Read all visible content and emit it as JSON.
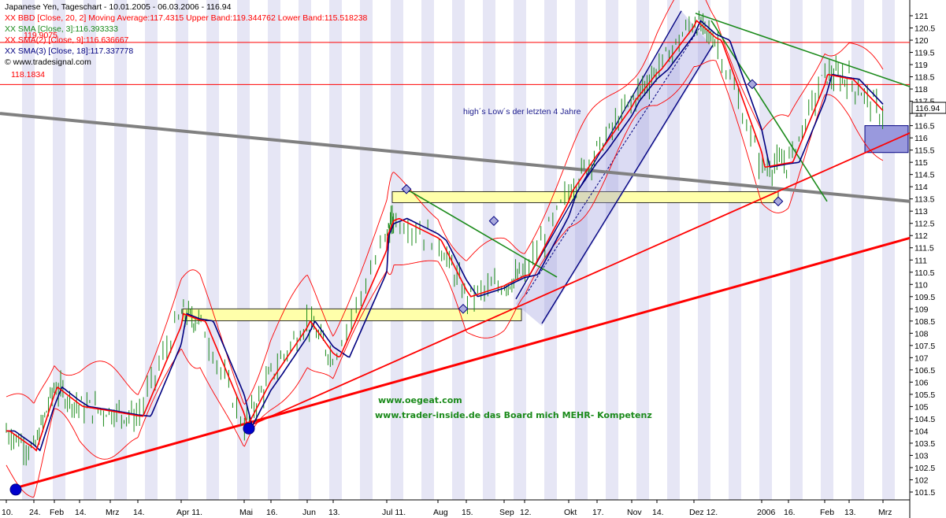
{
  "header": {
    "line1": "Japanese Yen, Tageschart - 10.01.2005 - 06.03.2006 - 116.94",
    "line2": "XX BBD [Close, 20, 2] Moving Average:117.4315 Upper Band:119.344762 Lower Band:115.518238",
    "line3": "XX SMA [Close, 3]:116.393333",
    "line4": "XX SMA(2) [Close, 9]:116.636667",
    "line5": "XX SMA(3) [Close, 18]:117.337778",
    "line6": "© www.tradesignal.com",
    "overlap_label": "119.9075",
    "line_label": "118.1834"
  },
  "annotations": {
    "note": "high´s Low´s der letzten 4 Jahre",
    "url1": "www.oegeat.com",
    "url2": "www.trader-inside.de das Board mich MEHR- Kompetenz"
  },
  "price_box": "116.94",
  "colors": {
    "bar": "#1a8a1a",
    "sma3": "#ff0000",
    "sma18": "#000080",
    "band": "#ff0000",
    "channel": "#000080",
    "trend_green": "#1a8a1a",
    "trend_red": "#ff0000",
    "trend_gray": "#808080",
    "zone_fill": "#ffffaa",
    "stripe": "#e6e6f5"
  },
  "chart_data": {
    "type": "line",
    "title": "Japanese Yen, Tageschart - 10.01.2005 - 06.03.2006 - 116.94",
    "y_axis": {
      "min": 101.5,
      "max": 121,
      "step": 0.5
    },
    "y_tick_labels": [
      "121",
      "120.5",
      "120",
      "119.5",
      "119",
      "118.5",
      "118",
      "117.5",
      "117",
      "116.5",
      "116",
      "115.5",
      "115",
      "114.5",
      "114",
      "113.5",
      "113",
      "112.5",
      "112",
      "111.5",
      "111",
      "110.5",
      "110",
      "109.5",
      "109",
      "108.5",
      "108",
      "107.5",
      "107",
      "106.5",
      "106",
      "105.5",
      "105",
      "104.5",
      "104",
      "103.5",
      "103",
      "102.5",
      "102",
      "101.5"
    ],
    "x_tick_labels": [
      "10.",
      "24.",
      "Feb",
      "14.",
      "Mrz",
      "14.",
      "Apr 11.",
      "Mai",
      "16.",
      "Jun",
      "13.",
      "Jul 11.",
      "Aug",
      "15.",
      "Sep",
      "12.",
      "Okt",
      "17.",
      "Nov",
      "14.",
      "Dez 12.",
      "2006",
      "16.",
      "Feb",
      "13.",
      "Mrz"
    ],
    "x_labels_full": [
      "10.",
      "24.",
      "Feb",
      "14.",
      "Mrz",
      "14.",
      "Apr",
      "11.",
      "Mai",
      "16.",
      "Jun",
      "13.",
      "Jul",
      "11.",
      "Aug",
      "15.",
      "Sep",
      "12.",
      "Okt",
      "17.",
      "Nov",
      "14.",
      "Dez",
      "12.",
      "2006",
      "16.",
      "Feb",
      "13.",
      "Mrz"
    ],
    "series": [
      {
        "name": "SMA [Close, 3]",
        "last": 116.393333
      },
      {
        "name": "SMA(2) [Close, 9]",
        "last": 116.636667
      },
      {
        "name": "SMA(3) [Close, 18]",
        "last": 117.337778
      }
    ],
    "bollinger": {
      "moving_average": 117.4315,
      "upper": 119.344762,
      "lower": 115.518238
    },
    "close_path": [
      [
        "10.",
        104.0
      ],
      [
        "24.",
        103.2
      ],
      [
        "Feb",
        105.8
      ],
      [
        "14.",
        105.0
      ],
      [
        "Mrz",
        104.8
      ],
      [
        "14.",
        104.6
      ],
      [
        "Apr",
        108.8
      ],
      [
        "11.",
        108.5
      ],
      [
        "Mai",
        104.2
      ],
      [
        "16.",
        106.3
      ],
      [
        "Jun",
        108.5
      ],
      [
        "13.",
        107.0
      ],
      [
        "Jul",
        112.0
      ],
      [
        "11.",
        112.7
      ],
      [
        "Aug",
        111.8
      ],
      [
        "15.",
        109.5
      ],
      [
        "Sep",
        110.0
      ],
      [
        "12.",
        110.4
      ],
      [
        "Okt",
        113.8
      ],
      [
        "17.",
        115.5
      ],
      [
        "Nov",
        117.5
      ],
      [
        "14.",
        118.8
      ],
      [
        "Dez",
        120.8
      ],
      [
        "12.",
        120.0
      ],
      [
        "2006",
        114.8
      ],
      [
        "16.",
        115.0
      ],
      [
        "Feb",
        118.6
      ],
      [
        "13.",
        118.4
      ],
      [
        "Mrz",
        116.94
      ]
    ],
    "horizontal_lines": [
      119.9075,
      118.1834
    ],
    "grid": false,
    "legend": "top-left"
  }
}
